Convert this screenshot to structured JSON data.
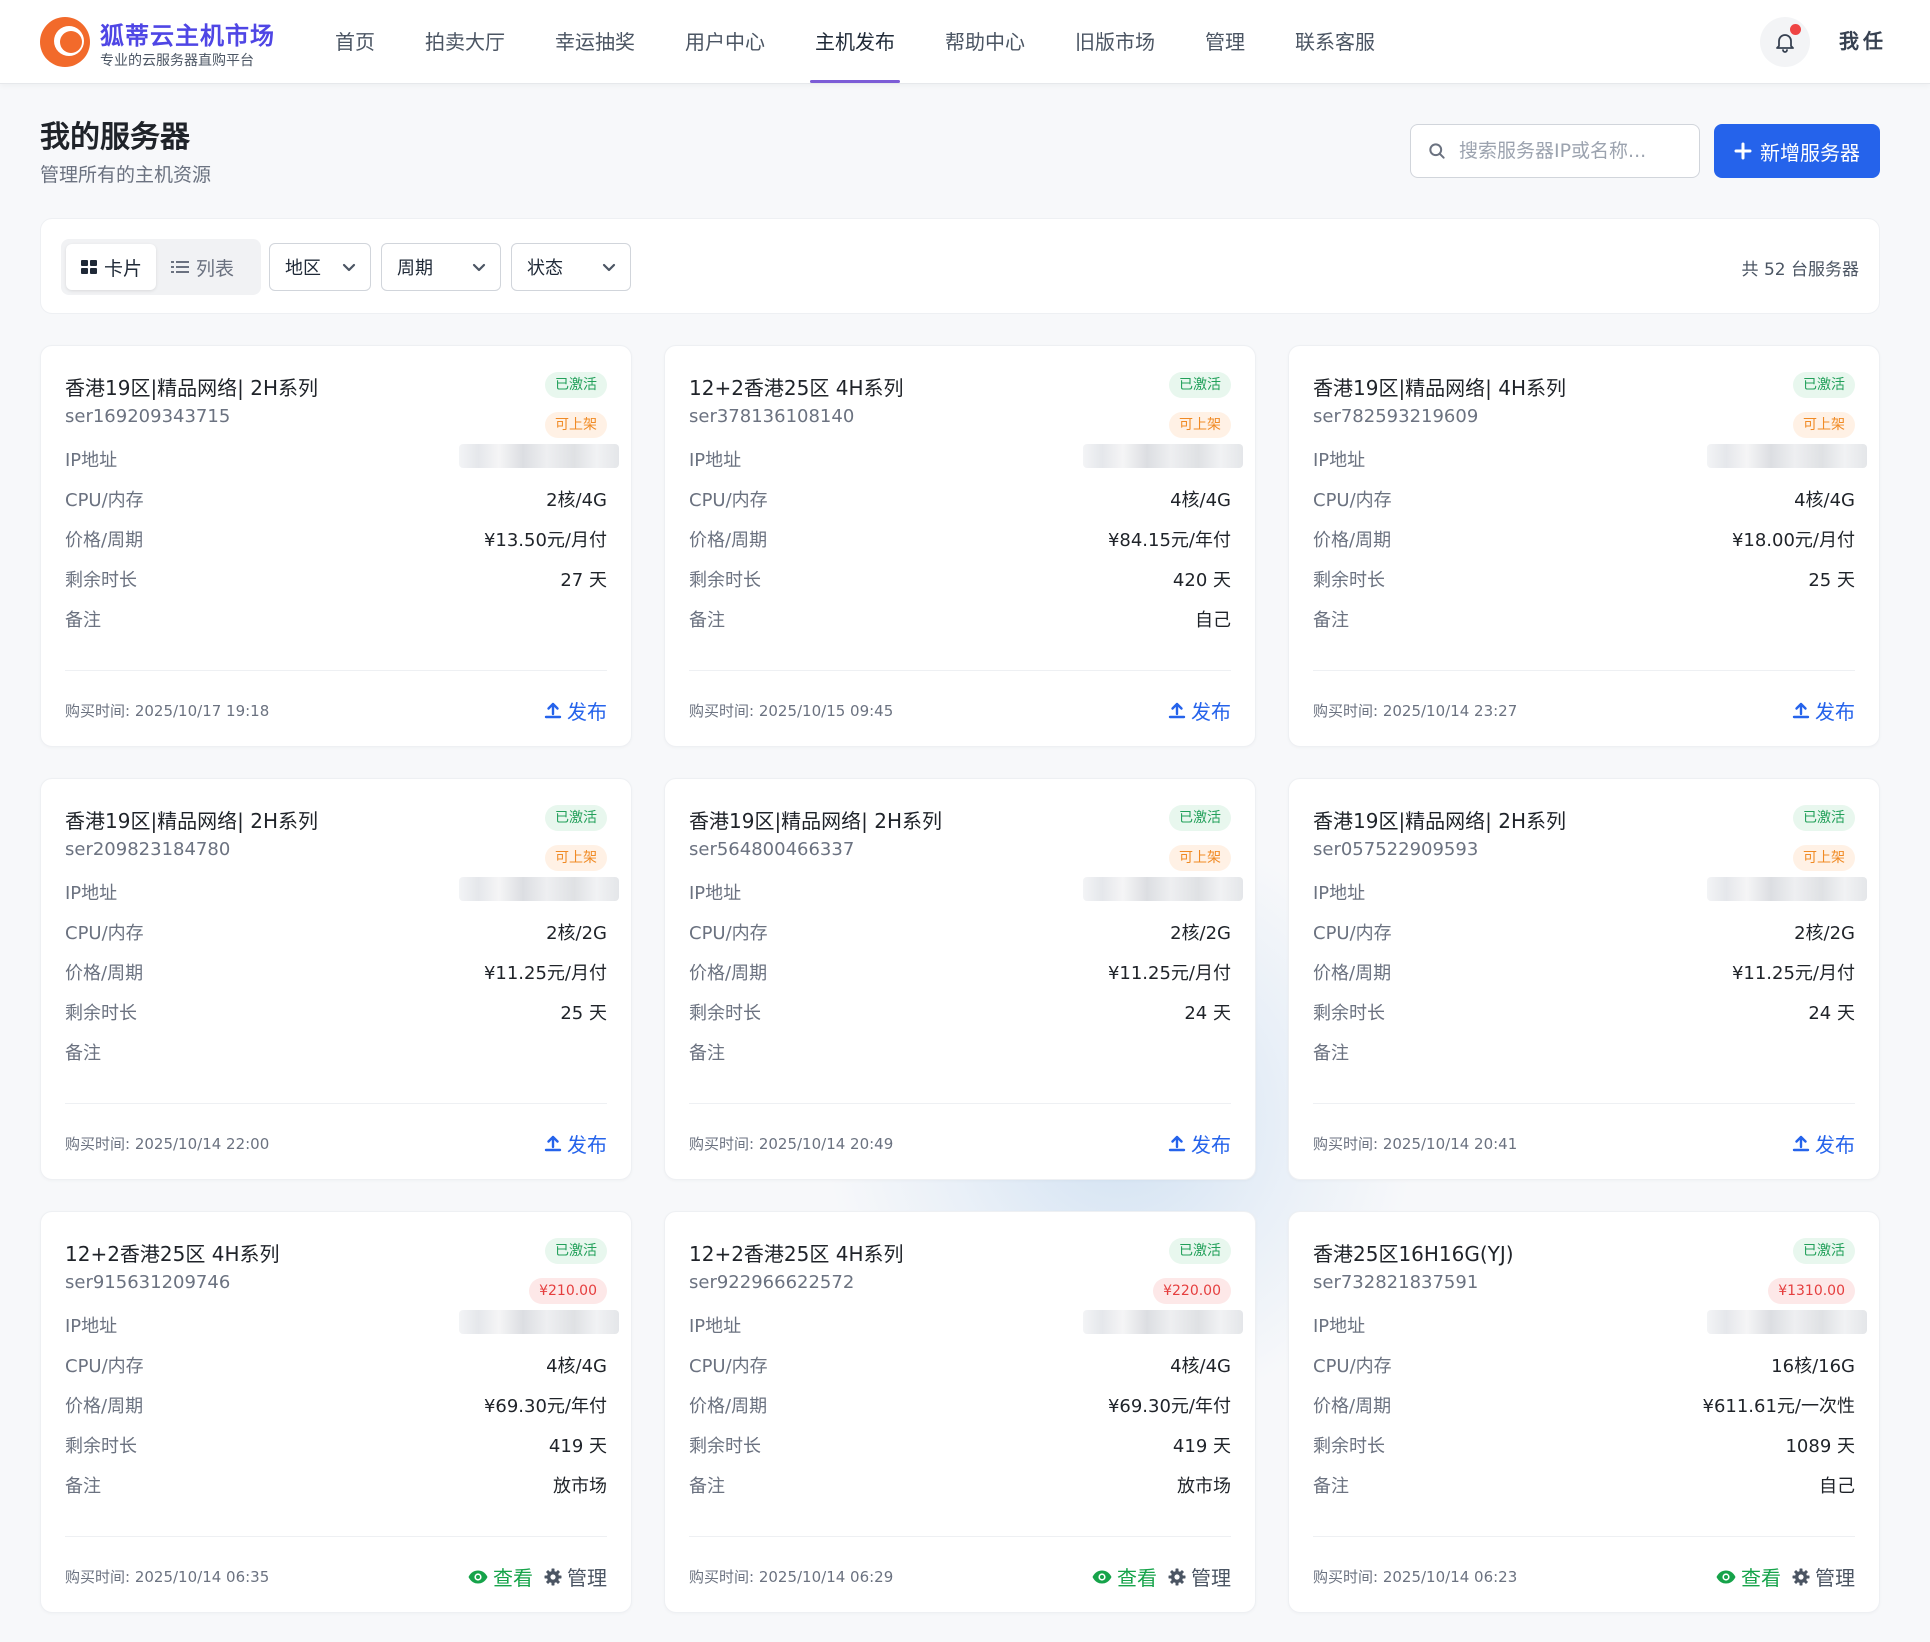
{
  "header": {
    "title": "狐蒂云主机市场",
    "subtitle": "专业的云服务器直购平台",
    "nav": [
      "首页",
      "拍卖大厅",
      "幸运抽奖",
      "用户中心",
      "主机发布",
      "帮助中心",
      "旧版市场",
      "管理",
      "联系客服"
    ],
    "active_nav": "主机发布",
    "avatar_chars": [
      "我",
      "任"
    ]
  },
  "page": {
    "title": "我的服务器",
    "subtitle": "管理所有的主机资源",
    "search_placeholder": "搜索服务器IP或名称...",
    "add_label": "新增服务器"
  },
  "toolbar": {
    "card_label": "卡片",
    "list_label": "列表",
    "region_label": "地区",
    "cycle_label": "周期",
    "status_label": "状态",
    "total_text": "共 52 台服务器"
  },
  "labels": {
    "ip": "IP地址",
    "cpu": "CPU/内存",
    "price": "价格/周期",
    "remaining": "剩余时长",
    "note": "备注",
    "publish": "发布",
    "view": "查看",
    "manage": "管理"
  },
  "colors": {
    "primary": "#2563eb",
    "active_badge_bg": "#e8f7ee",
    "listable_badge_bg": "#fff1e5",
    "price_badge_bg": "#fde8e8"
  },
  "servers": [
    {
      "name": "香港19区|精品网络| 2H系列",
      "id": "ser169209343715",
      "status": "已激活",
      "tag": "可上架",
      "tag_type": "orange",
      "cpu": "2核/4G",
      "price": "¥13.50元/月付",
      "remaining": "27 天",
      "note": "",
      "buy_time": "购买时间: 2025/10/17 19:18",
      "action": "publish"
    },
    {
      "name": "12+2香港25区 4H系列",
      "id": "ser378136108140",
      "status": "已激活",
      "tag": "可上架",
      "tag_type": "orange",
      "cpu": "4核/4G",
      "price": "¥84.15元/年付",
      "remaining": "420 天",
      "note": "自己",
      "buy_time": "购买时间: 2025/10/15 09:45",
      "action": "publish"
    },
    {
      "name": "香港19区|精品网络| 4H系列",
      "id": "ser782593219609",
      "status": "已激活",
      "tag": "可上架",
      "tag_type": "orange",
      "cpu": "4核/4G",
      "price": "¥18.00元/月付",
      "remaining": "25 天",
      "note": "",
      "buy_time": "购买时间: 2025/10/14 23:27",
      "action": "publish"
    },
    {
      "name": "香港19区|精品网络| 2H系列",
      "id": "ser209823184780",
      "status": "已激活",
      "tag": "可上架",
      "tag_type": "orange",
      "cpu": "2核/2G",
      "price": "¥11.25元/月付",
      "remaining": "25 天",
      "note": "",
      "buy_time": "购买时间: 2025/10/14 22:00",
      "action": "publish"
    },
    {
      "name": "香港19区|精品网络| 2H系列",
      "id": "ser564800466337",
      "status": "已激活",
      "tag": "可上架",
      "tag_type": "orange",
      "cpu": "2核/2G",
      "price": "¥11.25元/月付",
      "remaining": "24 天",
      "note": "",
      "buy_time": "购买时间: 2025/10/14 20:49",
      "action": "publish"
    },
    {
      "name": "香港19区|精品网络| 2H系列",
      "id": "ser057522909593",
      "status": "已激活",
      "tag": "可上架",
      "tag_type": "orange",
      "cpu": "2核/2G",
      "price": "¥11.25元/月付",
      "remaining": "24 天",
      "note": "",
      "buy_time": "购买时间: 2025/10/14 20:41",
      "action": "publish"
    },
    {
      "name": "12+2香港25区 4H系列",
      "id": "ser915631209746",
      "status": "已激活",
      "tag": "¥210.00",
      "tag_type": "red",
      "cpu": "4核/4G",
      "price": "¥69.30元/年付",
      "remaining": "419 天",
      "note": "放市场",
      "buy_time": "购买时间: 2025/10/14 06:35",
      "action": "view"
    },
    {
      "name": "12+2香港25区 4H系列",
      "id": "ser922966622572",
      "status": "已激活",
      "tag": "¥220.00",
      "tag_type": "red",
      "cpu": "4核/4G",
      "price": "¥69.30元/年付",
      "remaining": "419 天",
      "note": "放市场",
      "buy_time": "购买时间: 2025/10/14 06:29",
      "action": "view"
    },
    {
      "name": "香港25区16H16G(YJ)",
      "id": "ser732821837591",
      "status": "已激活",
      "tag": "¥1310.00",
      "tag_type": "red",
      "cpu": "16核/16G",
      "price": "¥611.61元/一次性",
      "remaining": "1089 天",
      "note": "自己",
      "buy_time": "购买时间: 2025/10/14 06:23",
      "action": "view"
    }
  ]
}
